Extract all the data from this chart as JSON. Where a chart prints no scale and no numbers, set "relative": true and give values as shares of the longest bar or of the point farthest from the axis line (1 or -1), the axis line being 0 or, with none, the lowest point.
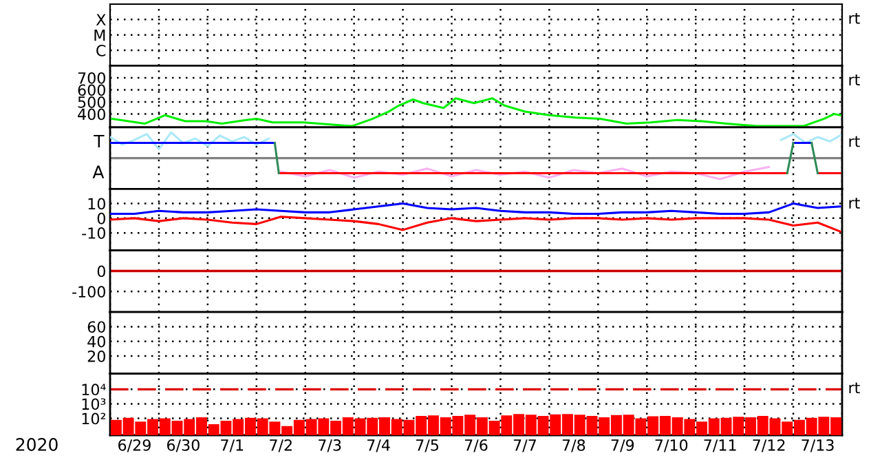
{
  "chart_data": [
    {
      "type": "other",
      "y_categories": [
        "X",
        "M",
        "C"
      ],
      "annotations": [
        "rt"
      ]
    },
    {
      "type": "line",
      "xlim": [
        "2020-06-29T00:00",
        "2020-07-14T00:00"
      ],
      "ylim": [
        290,
        800
      ],
      "yticks": [
        400,
        500,
        600,
        700
      ],
      "grid": true,
      "tick_labels": "y",
      "annotations": [
        "rt"
      ],
      "series": [
        {
          "color": "#00ee00",
          "x": [
            "2020-06-29T01:00",
            "2020-06-29T17:00",
            "2020-06-30T03:00",
            "2020-06-30T13:00",
            "2020-06-30T23:00",
            "2020-07-01T07:00",
            "2020-07-01T19:00",
            "2020-07-02T00:00",
            "2020-07-02T08:00",
            "2020-07-02T23:00",
            "2020-07-03T23:00",
            "2020-07-04T09:00",
            "2020-07-04T17:00",
            "2020-07-04T22:00",
            "2020-07-05T05:00",
            "2020-07-05T10:00",
            "2020-07-05T20:00",
            "2020-07-06T02:00",
            "2020-07-06T11:00",
            "2020-07-06T20:00",
            "2020-07-07T02:00",
            "2020-07-07T12:00",
            "2020-07-08T00:00",
            "2020-07-08T13:00",
            "2020-07-09T01:00",
            "2020-07-09T14:00",
            "2020-07-10T02:00",
            "2020-07-10T15:00",
            "2020-07-11T03:00",
            "2020-07-11T15:00",
            "2020-07-12T06:00",
            "2020-07-13T05:00",
            "2020-07-13T15:00",
            "2020-07-13T20:00",
            "2020-07-13T23:00"
          ],
          "values": [
            360,
            320,
            390,
            340,
            340,
            320,
            350,
            360,
            330,
            330,
            300,
            360,
            420,
            470,
            520,
            490,
            450,
            530,
            490,
            530,
            470,
            420,
            390,
            370,
            360,
            320,
            330,
            350,
            340,
            320,
            300,
            300,
            360,
            400,
            390
          ]
        }
      ],
      "xticks": [
        {
          "value": "2020-06-29T00:00",
          "label": null
        },
        {
          "value": "2020-06-30T00:00",
          "label": null
        },
        {
          "value": "2020-07-01T00:00",
          "label": null
        },
        {
          "value": "2020-07-02T00:00",
          "label": null
        },
        {
          "value": "2020-07-03T00:00",
          "label": null
        },
        {
          "value": "2020-07-04T00:00",
          "label": null
        },
        {
          "value": "2020-07-05T00:00",
          "label": null
        },
        {
          "value": "2020-07-06T00:00",
          "label": null
        },
        {
          "value": "2020-07-07T00:00",
          "label": null
        },
        {
          "value": "2020-07-08T00:00",
          "label": null
        },
        {
          "value": "2020-07-09T00:00",
          "label": null
        },
        {
          "value": "2020-07-10T00:00",
          "label": null
        },
        {
          "value": "2020-07-11T00:00",
          "label": null
        },
        {
          "value": "2020-07-12T00:00",
          "label": null
        },
        {
          "value": "2020-07-13T00:00",
          "label": null
        },
        {
          "value": "2020-07-14T00:00",
          "label": null
        }
      ]
    },
    {
      "type": "line",
      "xlim": [
        "2020-06-29T00:00",
        "2020-07-14T00:00"
      ],
      "relative": true,
      "grid": "x",
      "tick_labels": "y",
      "annotations": [
        "rt",
        "T",
        "A"
      ],
      "ref_lines": [
        {
          "axis": "y",
          "value": 0,
          "color": "#808080"
        }
      ],
      "series": [
        {
          "color": "#aae8f8",
          "x": [
            "2020-06-29T00:00",
            "2020-06-29T06:00",
            "2020-06-29T12:00",
            "2020-06-29T18:00",
            "2020-06-30T00:00",
            "2020-06-30T06:00",
            "2020-06-30T12:00",
            "2020-06-30T18:00",
            "2020-07-01T00:00",
            "2020-07-01T06:00",
            "2020-07-01T12:00",
            "2020-07-01T18:00",
            "2020-07-02T00:00",
            "2020-07-02T06:00",
            "2020-07-07T00:00",
            "2020-07-12T18:00",
            "2020-07-13T00:00",
            "2020-07-13T06:00",
            "2020-07-13T12:00",
            "2020-07-13T18:00",
            "2020-07-13T23:00"
          ],
          "values": [
            0.82,
            0.53,
            0.71,
            0.94,
            0.35,
            1,
            0.59,
            0.76,
            0.47,
            0.88,
            0.65,
            0.82,
            0.53,
            0.76,
            null,
            0.71,
            0.94,
            0.59,
            0.82,
            0.65,
            0.88
          ]
        },
        {
          "color": "#f8b0f0",
          "x": [
            "2020-07-02T12:00",
            "2020-07-03T00:00",
            "2020-07-03T12:00",
            "2020-07-04T00:00",
            "2020-07-04T12:00",
            "2020-07-05T00:00",
            "2020-07-05T12:00",
            "2020-07-06T00:00",
            "2020-07-06T12:00",
            "2020-07-07T00:00",
            "2020-07-07T12:00",
            "2020-07-08T00:00",
            "2020-07-08T12:00",
            "2020-07-09T00:00",
            "2020-07-09T12:00",
            "2020-07-10T00:00",
            "2020-07-10T12:00",
            "2020-07-11T00:00",
            "2020-07-11T12:00",
            "2020-07-12T00:00",
            "2020-07-12T12:00"
          ],
          "values": [
            -0.53,
            -0.71,
            -0.47,
            -0.76,
            -0.53,
            -0.65,
            -0.41,
            -0.71,
            -0.47,
            -0.65,
            -0.53,
            -0.76,
            -0.47,
            -0.59,
            -0.41,
            -0.71,
            -0.53,
            -0.59,
            -0.82,
            -0.53,
            -0.35
          ]
        },
        {
          "color": "#0000ff",
          "x": [
            "2020-06-29T00:00",
            "2020-07-02T09:00",
            "2020-07-07T00:00",
            "2020-07-13T00:00",
            "2020-07-13T09:00"
          ],
          "values": [
            0.59,
            0.59,
            null,
            0.59,
            0.59
          ]
        },
        {
          "color": "#ff0000",
          "x": [
            "2020-07-02T11:00",
            "2020-07-12T21:00",
            "2020-07-13T03:00",
            "2020-07-13T12:00",
            "2020-07-13T23:00"
          ],
          "values": [
            -0.59,
            -0.59,
            null,
            -0.59,
            -0.59
          ]
        },
        {
          "color": "#2e8b57",
          "x": [
            "2020-07-02T09:00",
            "2020-07-02T11:00",
            "2020-07-07T00:00",
            "2020-07-12T21:00",
            "2020-07-13T00:00",
            "2020-07-13T04:00",
            "2020-07-13T09:00",
            "2020-07-13T12:00"
          ],
          "values": [
            0.59,
            -0.59,
            null,
            -0.59,
            0.59,
            null,
            0.59,
            -0.59
          ]
        }
      ],
      "xticks": [
        {
          "value": "2020-06-29T00:00",
          "label": null
        },
        {
          "value": "2020-06-30T00:00",
          "label": null
        },
        {
          "value": "2020-07-01T00:00",
          "label": null
        },
        {
          "value": "2020-07-02T00:00",
          "label": null
        },
        {
          "value": "2020-07-03T00:00",
          "label": null
        },
        {
          "value": "2020-07-04T00:00",
          "label": null
        },
        {
          "value": "2020-07-05T00:00",
          "label": null
        },
        {
          "value": "2020-07-06T00:00",
          "label": null
        },
        {
          "value": "2020-07-07T00:00",
          "label": null
        },
        {
          "value": "2020-07-08T00:00",
          "label": null
        },
        {
          "value": "2020-07-09T00:00",
          "label": null
        },
        {
          "value": "2020-07-10T00:00",
          "label": null
        },
        {
          "value": "2020-07-11T00:00",
          "label": null
        },
        {
          "value": "2020-07-12T00:00",
          "label": null
        },
        {
          "value": "2020-07-13T00:00",
          "label": null
        },
        {
          "value": "2020-07-14T00:00",
          "label": null
        }
      ]
    },
    {
      "type": "line",
      "xlim": [
        "2020-06-29T00:00",
        "2020-07-14T00:00"
      ],
      "ylim": [
        -22,
        20
      ],
      "yticks": [
        10,
        0,
        -10
      ],
      "grid": true,
      "tick_labels": "y",
      "annotations": [
        "rt"
      ],
      "x": [
        "2020-06-29T00:00",
        "2020-06-29T12:00",
        "2020-06-30T00:00",
        "2020-06-30T12:00",
        "2020-07-01T00:00",
        "2020-07-01T12:00",
        "2020-07-02T00:00",
        "2020-07-02T12:00",
        "2020-07-03T00:00",
        "2020-07-03T12:00",
        "2020-07-04T00:00",
        "2020-07-04T12:00",
        "2020-07-05T00:00",
        "2020-07-05T12:00",
        "2020-07-06T00:00",
        "2020-07-06T12:00",
        "2020-07-07T00:00",
        "2020-07-07T12:00",
        "2020-07-08T00:00",
        "2020-07-08T12:00",
        "2020-07-09T00:00",
        "2020-07-09T12:00",
        "2020-07-10T00:00",
        "2020-07-10T12:00",
        "2020-07-11T00:00",
        "2020-07-11T12:00",
        "2020-07-12T00:00",
        "2020-07-12T12:00",
        "2020-07-13T00:00",
        "2020-07-13T12:00",
        "2020-07-13T23:00"
      ],
      "series": [
        {
          "color": "#0000ff",
          "values": [
            3,
            3,
            5,
            4,
            4,
            5,
            6,
            5,
            4,
            4,
            6,
            8,
            10,
            7,
            6,
            7,
            5,
            4,
            4,
            3,
            3,
            4,
            4,
            5,
            4,
            3,
            3,
            4,
            10,
            7,
            8
          ]
        },
        {
          "color": "#ff0000",
          "values": [
            -1,
            0,
            -2,
            0,
            -1,
            -3,
            -4,
            1,
            0,
            -1,
            -2,
            -4,
            -8,
            -3,
            0,
            -2,
            -1,
            0,
            -1,
            0,
            0,
            -1,
            0,
            -1,
            0,
            0,
            0,
            -1,
            -5,
            -3,
            -9
          ]
        }
      ],
      "xticks": [
        {
          "value": "2020-06-29T00:00",
          "label": null
        },
        {
          "value": "2020-06-30T00:00",
          "label": null
        },
        {
          "value": "2020-07-01T00:00",
          "label": null
        },
        {
          "value": "2020-07-02T00:00",
          "label": null
        },
        {
          "value": "2020-07-03T00:00",
          "label": null
        },
        {
          "value": "2020-07-04T00:00",
          "label": null
        },
        {
          "value": "2020-07-05T00:00",
          "label": null
        },
        {
          "value": "2020-07-06T00:00",
          "label": null
        },
        {
          "value": "2020-07-07T00:00",
          "label": null
        },
        {
          "value": "2020-07-08T00:00",
          "label": null
        },
        {
          "value": "2020-07-09T00:00",
          "label": null
        },
        {
          "value": "2020-07-10T00:00",
          "label": null
        },
        {
          "value": "2020-07-11T00:00",
          "label": null
        },
        {
          "value": "2020-07-12T00:00",
          "label": null
        },
        {
          "value": "2020-07-13T00:00",
          "label": null
        },
        {
          "value": "2020-07-14T00:00",
          "label": null
        }
      ]
    },
    {
      "type": "line",
      "xlim": [
        "2020-06-29T00:00",
        "2020-07-14T00:00"
      ],
      "ylim": [
        -200,
        100
      ],
      "yticks": [
        0,
        -100
      ],
      "grid": true,
      "tick_labels": "y",
      "ref_lines": [
        {
          "axis": "y",
          "value": 0,
          "color": "#cc0000"
        }
      ],
      "xticks": [
        {
          "value": "2020-06-29T00:00",
          "label": null
        },
        {
          "value": "2020-06-30T00:00",
          "label": null
        },
        {
          "value": "2020-07-01T00:00",
          "label": null
        },
        {
          "value": "2020-07-02T00:00",
          "label": null
        },
        {
          "value": "2020-07-03T00:00",
          "label": null
        },
        {
          "value": "2020-07-04T00:00",
          "label": null
        },
        {
          "value": "2020-07-05T00:00",
          "label": null
        },
        {
          "value": "2020-07-06T00:00",
          "label": null
        },
        {
          "value": "2020-07-07T00:00",
          "label": null
        },
        {
          "value": "2020-07-08T00:00",
          "label": null
        },
        {
          "value": "2020-07-09T00:00",
          "label": null
        },
        {
          "value": "2020-07-10T00:00",
          "label": null
        },
        {
          "value": "2020-07-11T00:00",
          "label": null
        },
        {
          "value": "2020-07-12T00:00",
          "label": null
        },
        {
          "value": "2020-07-13T00:00",
          "label": null
        },
        {
          "value": "2020-07-14T00:00",
          "label": null
        }
      ]
    },
    {
      "type": "line",
      "xlim": [
        "2020-06-29T00:00",
        "2020-07-14T00:00"
      ],
      "ylim": [
        -4,
        80
      ],
      "yticks": [
        60,
        40,
        20
      ],
      "grid": true,
      "tick_labels": "y",
      "xticks": [
        {
          "value": "2020-06-29T00:00",
          "label": null
        },
        {
          "value": "2020-06-30T00:00",
          "label": null
        },
        {
          "value": "2020-07-01T00:00",
          "label": null
        },
        {
          "value": "2020-07-02T00:00",
          "label": null
        },
        {
          "value": "2020-07-03T00:00",
          "label": null
        },
        {
          "value": "2020-07-04T00:00",
          "label": null
        },
        {
          "value": "2020-07-05T00:00",
          "label": null
        },
        {
          "value": "2020-07-06T00:00",
          "label": null
        },
        {
          "value": "2020-07-07T00:00",
          "label": null
        },
        {
          "value": "2020-07-08T00:00",
          "label": null
        },
        {
          "value": "2020-07-09T00:00",
          "label": null
        },
        {
          "value": "2020-07-10T00:00",
          "label": null
        },
        {
          "value": "2020-07-11T00:00",
          "label": null
        },
        {
          "value": "2020-07-12T00:00",
          "label": null
        },
        {
          "value": "2020-07-13T00:00",
          "label": null
        },
        {
          "value": "2020-07-14T00:00",
          "label": null
        }
      ]
    },
    {
      "type": "bar",
      "log": true,
      "xlabel": "2020",
      "xlim": [
        "2020-06-29T00:00",
        "2020-07-14T00:00"
      ],
      "ylim": [
        7,
        120000
      ],
      "yticks": [
        {
          "value": 10000,
          "label": "10⁴"
        },
        {
          "value": 1000,
          "label": "10³"
        },
        {
          "value": 100,
          "label": "10²"
        }
      ],
      "grid": true,
      "annotations": [
        "rt"
      ],
      "ref_lines": [
        {
          "axis": "y",
          "value": 10000,
          "color": "#dd0000",
          "line_style": "dashed"
        }
      ],
      "x": [
        "2020-06-29T03:00",
        "2020-06-29T09:00",
        "2020-06-29T15:00",
        "2020-06-29T21:00",
        "2020-06-30T03:00",
        "2020-06-30T09:00",
        "2020-06-30T15:00",
        "2020-06-30T21:00",
        "2020-07-01T03:00",
        "2020-07-01T09:00",
        "2020-07-01T15:00",
        "2020-07-01T21:00",
        "2020-07-02T03:00",
        "2020-07-02T09:00",
        "2020-07-02T15:00",
        "2020-07-02T21:00",
        "2020-07-03T03:00",
        "2020-07-03T09:00",
        "2020-07-03T15:00",
        "2020-07-03T21:00",
        "2020-07-04T03:00",
        "2020-07-04T09:00",
        "2020-07-04T15:00",
        "2020-07-04T21:00",
        "2020-07-05T03:00",
        "2020-07-05T09:00",
        "2020-07-05T15:00",
        "2020-07-05T21:00",
        "2020-07-06T03:00",
        "2020-07-06T09:00",
        "2020-07-06T15:00",
        "2020-07-06T21:00",
        "2020-07-07T03:00",
        "2020-07-07T09:00",
        "2020-07-07T15:00",
        "2020-07-07T21:00",
        "2020-07-08T03:00",
        "2020-07-08T09:00",
        "2020-07-08T15:00",
        "2020-07-08T21:00",
        "2020-07-09T03:00",
        "2020-07-09T09:00",
        "2020-07-09T15:00",
        "2020-07-09T21:00",
        "2020-07-10T03:00",
        "2020-07-10T09:00",
        "2020-07-10T15:00",
        "2020-07-10T21:00",
        "2020-07-11T03:00",
        "2020-07-11T09:00",
        "2020-07-11T15:00",
        "2020-07-11T21:00",
        "2020-07-12T03:00",
        "2020-07-12T09:00",
        "2020-07-12T15:00",
        "2020-07-12T21:00",
        "2020-07-13T03:00",
        "2020-07-13T09:00",
        "2020-07-13T15:00",
        "2020-07-13T21:00"
      ],
      "series": [
        {
          "color": "#ff0000",
          "values": [
            80,
            110,
            60,
            90,
            100,
            70,
            90,
            120,
            40,
            70,
            90,
            110,
            100,
            60,
            30,
            80,
            90,
            100,
            70,
            120,
            100,
            110,
            120,
            90,
            80,
            150,
            160,
            120,
            150,
            180,
            120,
            70,
            160,
            200,
            180,
            150,
            190,
            200,
            180,
            150,
            120,
            170,
            180,
            100,
            140,
            150,
            120,
            90,
            60,
            100,
            110,
            130,
            120,
            150,
            100,
            60,
            80,
            110,
            130,
            120
          ]
        }
      ],
      "xticks": [
        {
          "value": "2020-06-29T00:00",
          "label": null
        },
        {
          "value": "2020-06-29T12:00",
          "label": "6/29"
        },
        {
          "value": "2020-06-30T00:00",
          "label": null
        },
        {
          "value": "2020-06-30T12:00",
          "label": "6/30"
        },
        {
          "value": "2020-07-01T00:00",
          "label": null
        },
        {
          "value": "2020-07-01T12:00",
          "label": "7/1"
        },
        {
          "value": "2020-07-02T00:00",
          "label": null
        },
        {
          "value": "2020-07-02T12:00",
          "label": "7/2"
        },
        {
          "value": "2020-07-03T00:00",
          "label": null
        },
        {
          "value": "2020-07-03T12:00",
          "label": "7/3"
        },
        {
          "value": "2020-07-04T00:00",
          "label": null
        },
        {
          "value": "2020-07-04T12:00",
          "label": "7/4"
        },
        {
          "value": "2020-07-05T00:00",
          "label": null
        },
        {
          "value": "2020-07-05T12:00",
          "label": "7/5"
        },
        {
          "value": "2020-07-06T00:00",
          "label": null
        },
        {
          "value": "2020-07-06T12:00",
          "label": "7/6"
        },
        {
          "value": "2020-07-07T00:00",
          "label": null
        },
        {
          "value": "2020-07-07T12:00",
          "label": "7/7"
        },
        {
          "value": "2020-07-08T00:00",
          "label": null
        },
        {
          "value": "2020-07-08T12:00",
          "label": "7/8"
        },
        {
          "value": "2020-07-09T00:00",
          "label": null
        },
        {
          "value": "2020-07-09T12:00",
          "label": "7/9"
        },
        {
          "value": "2020-07-10T00:00",
          "label": null
        },
        {
          "value": "2020-07-10T12:00",
          "label": "7/10"
        },
        {
          "value": "2020-07-11T00:00",
          "label": null
        },
        {
          "value": "2020-07-11T12:00",
          "label": "7/11"
        },
        {
          "value": "2020-07-12T00:00",
          "label": null
        },
        {
          "value": "2020-07-12T12:00",
          "label": "7/12"
        },
        {
          "value": "2020-07-13T00:00",
          "label": null
        },
        {
          "value": "2020-07-13T12:00",
          "label": "7/13"
        },
        {
          "value": "2020-07-14T00:00",
          "label": null
        }
      ]
    }
  ]
}
